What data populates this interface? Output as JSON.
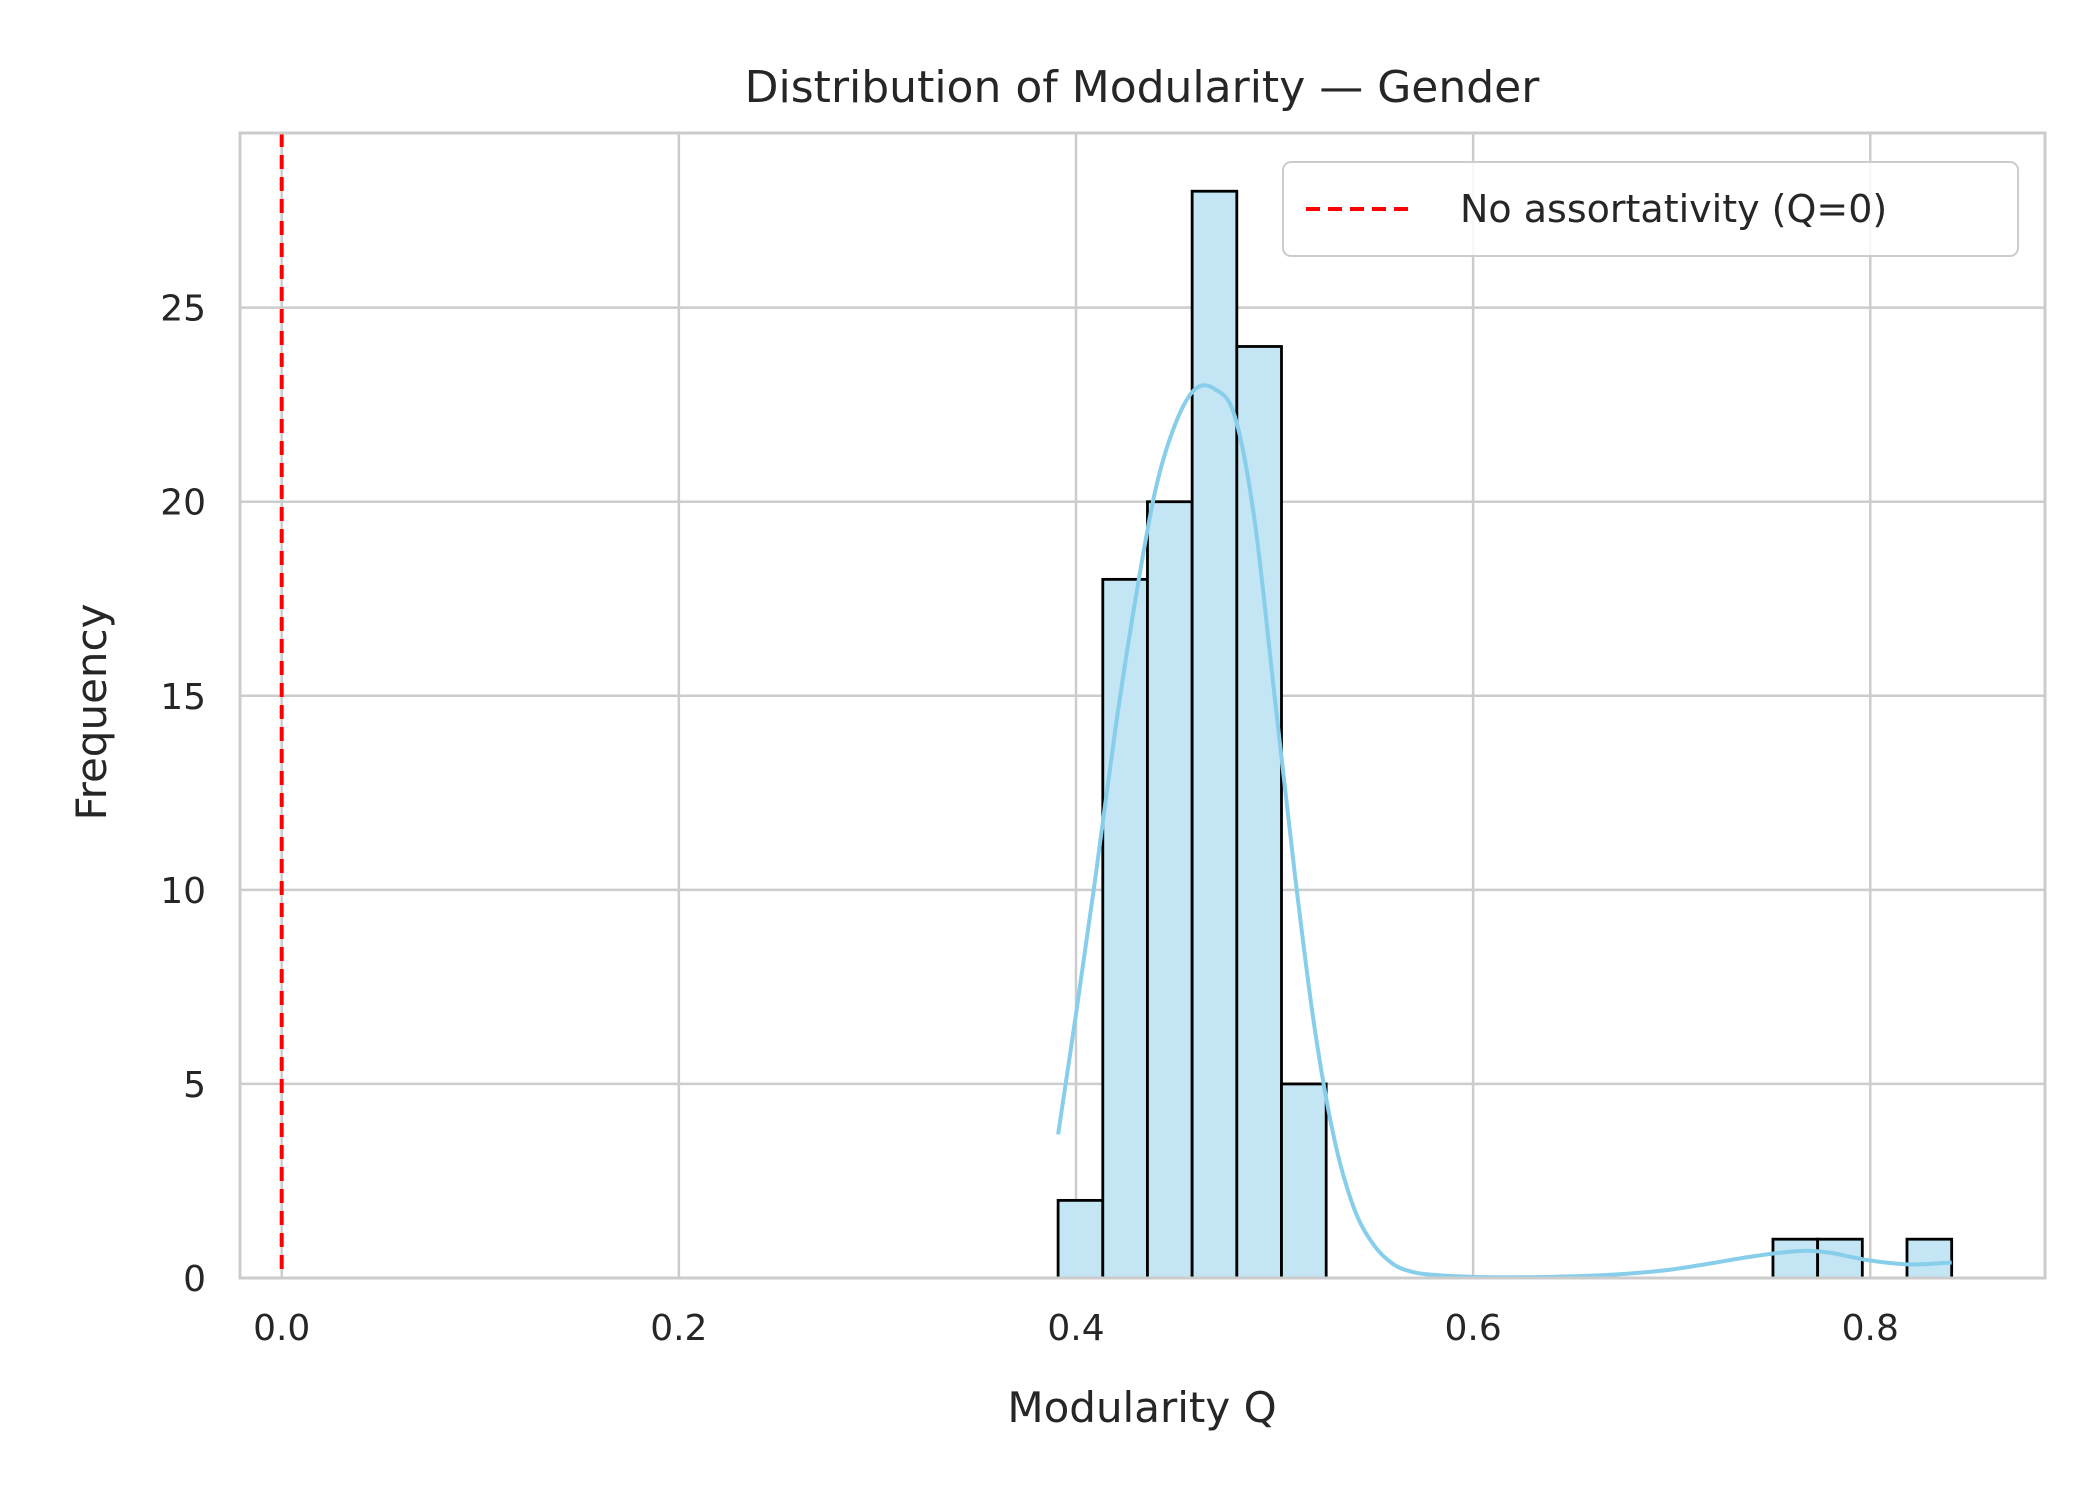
{
  "chart_data": {
    "type": "bar",
    "title": "Distribution of Modularity — Gender",
    "xlabel": "Modularity Q",
    "ylabel": "Frequency",
    "xlim": [
      -0.021,
      0.888
    ],
    "ylim": [
      0,
      29.5
    ],
    "xticks": [
      0.0,
      0.2,
      0.4,
      0.6,
      0.8
    ],
    "xtick_labels": [
      "0.0",
      "0.2",
      "0.4",
      "0.6",
      "0.8"
    ],
    "yticks": [
      0,
      5,
      10,
      15,
      20,
      25
    ],
    "ytick_labels": [
      "0",
      "5",
      "10",
      "15",
      "20",
      "25"
    ],
    "grid": true,
    "legend_position": "top-right",
    "bins": [
      {
        "x0": 0.391,
        "x1": 0.4135,
        "count": 2
      },
      {
        "x0": 0.4135,
        "x1": 0.436,
        "count": 18
      },
      {
        "x0": 0.436,
        "x1": 0.4585,
        "count": 20
      },
      {
        "x0": 0.4585,
        "x1": 0.481,
        "count": 28
      },
      {
        "x0": 0.481,
        "x1": 0.5035,
        "count": 24
      },
      {
        "x0": 0.5035,
        "x1": 0.526,
        "count": 5
      },
      {
        "x0": 0.526,
        "x1": 0.5485,
        "count": 0
      },
      {
        "x0": 0.5485,
        "x1": 0.571,
        "count": 0
      },
      {
        "x0": 0.571,
        "x1": 0.5935,
        "count": 0
      },
      {
        "x0": 0.5935,
        "x1": 0.616,
        "count": 0
      },
      {
        "x0": 0.616,
        "x1": 0.6385,
        "count": 0
      },
      {
        "x0": 0.6385,
        "x1": 0.661,
        "count": 0
      },
      {
        "x0": 0.661,
        "x1": 0.6835,
        "count": 0
      },
      {
        "x0": 0.6835,
        "x1": 0.706,
        "count": 0
      },
      {
        "x0": 0.706,
        "x1": 0.7285,
        "count": 0
      },
      {
        "x0": 0.7285,
        "x1": 0.751,
        "count": 0
      },
      {
        "x0": 0.751,
        "x1": 0.7735,
        "count": 1
      },
      {
        "x0": 0.7735,
        "x1": 0.796,
        "count": 1
      },
      {
        "x0": 0.796,
        "x1": 0.8185,
        "count": 0
      },
      {
        "x0": 0.8185,
        "x1": 0.841,
        "count": 1
      }
    ],
    "kde": {
      "x": [
        0.391,
        0.4,
        0.41,
        0.42,
        0.43,
        0.44,
        0.45,
        0.46,
        0.47,
        0.48,
        0.49,
        0.5,
        0.51,
        0.52,
        0.53,
        0.54,
        0.55,
        0.56,
        0.57,
        0.58,
        0.6,
        0.62,
        0.64,
        0.66,
        0.68,
        0.7,
        0.72,
        0.74,
        0.76,
        0.77,
        0.78,
        0.8,
        0.82,
        0.841
      ],
      "y": [
        3.7,
        6.8,
        10.4,
        14.2,
        17.5,
        20.3,
        22.0,
        22.9,
        22.9,
        22.2,
        19.5,
        15.0,
        10.5,
        6.5,
        3.6,
        1.8,
        0.85,
        0.35,
        0.15,
        0.08,
        0.03,
        0.02,
        0.03,
        0.06,
        0.12,
        0.22,
        0.38,
        0.55,
        0.68,
        0.7,
        0.65,
        0.45,
        0.35,
        0.4
      ]
    },
    "reference_line": {
      "x": 0,
      "label": "No assortativity (Q=0)"
    },
    "colors": {
      "bar_fill": "#c3e5f4",
      "bar_edge": "#000000",
      "kde": "#87ceeb",
      "reference_line": "#ff0000",
      "grid": "#cccccc",
      "spine": "#cccccc",
      "text": "#262626"
    }
  }
}
